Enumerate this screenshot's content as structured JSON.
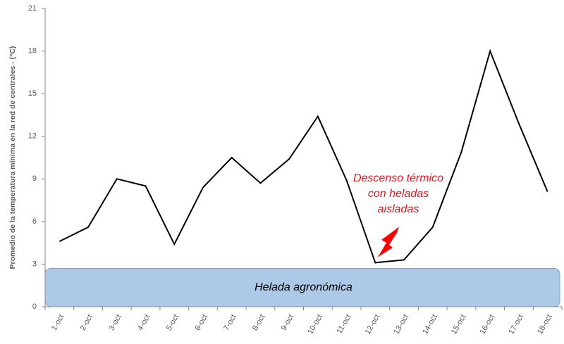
{
  "chart_data": {
    "type": "line",
    "y_label": "Promedio de la temperatura mínima en la red de centrales - (°C)",
    "categories": [
      "1-oct",
      "2-oct",
      "3-oct",
      "4-oct",
      "5-oct",
      "6-oct",
      "7-oct",
      "8-oct",
      "9-oct",
      "10-oct",
      "11-oct",
      "12-oct",
      "13-oct",
      "14-oct",
      "15-oct",
      "16-oct",
      "17-oct",
      "18-oct"
    ],
    "values": [
      4.6,
      5.6,
      9.0,
      8.5,
      4.4,
      8.4,
      10.5,
      8.7,
      10.4,
      13.4,
      8.9,
      3.1,
      3.3,
      5.6,
      10.9,
      18.0,
      12.9,
      8.1
    ],
    "color": "#000000",
    "ylim": [
      0,
      21
    ],
    "yticks": [
      0,
      3,
      6,
      9,
      12,
      15,
      18,
      21
    ],
    "shaded_range": {
      "label": "Helada agronómica",
      "ylim": [
        0,
        2.7
      ],
      "color": "#adc9e8"
    },
    "annotation": {
      "lines": [
        "Descenso térmico",
        "con heladas",
        "aisladas"
      ],
      "color": "#e8141b"
    }
  }
}
